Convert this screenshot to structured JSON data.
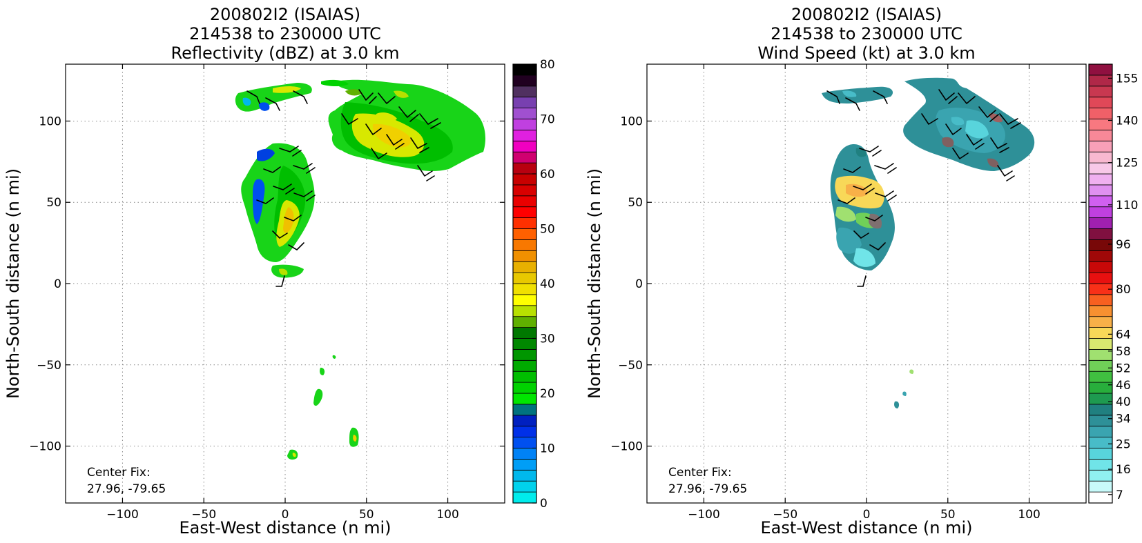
{
  "chart_data": [
    {
      "type": "heatmap",
      "title_lines": [
        "200802I2 (ISAIAS)",
        "214538 to 230000 UTC",
        "Reflectivity (dBZ) at 3.0 km"
      ],
      "xlabel": "East-West distance (n mi)",
      "ylabel": "North-South distance (n mi)",
      "xlim": [
        -135,
        135
      ],
      "ylim": [
        -135,
        135
      ],
      "xticks": [
        -100,
        -50,
        0,
        50,
        100
      ],
      "yticks": [
        -100,
        -50,
        0,
        50,
        100
      ],
      "grid": true,
      "annotation": [
        "Center Fix:",
        "27.96, -79.65"
      ],
      "colorbar": {
        "min": 0,
        "max": 80,
        "tick_labels": [
          "0",
          "10",
          "20",
          "30",
          "40",
          "50",
          "60",
          "70",
          "80"
        ],
        "tick_values": [
          0,
          10,
          20,
          30,
          40,
          50,
          60,
          70,
          80
        ],
        "colors": [
          "#00ecec",
          "#00d2ec",
          "#00b8ec",
          "#009ef6",
          "#0082f6",
          "#0050f0",
          "#0030e8",
          "#0020c0",
          "#00727f",
          "#00e600",
          "#00d200",
          "#00be00",
          "#00aa00",
          "#009600",
          "#008800",
          "#007800",
          "#60b000",
          "#b8e000",
          "#ffff00",
          "#f0e000",
          "#e8c800",
          "#e8b000",
          "#f09000",
          "#f87800",
          "#ff6000",
          "#ff3000",
          "#ff0000",
          "#ea0000",
          "#d80000",
          "#c80000",
          "#b80010",
          "#d00070",
          "#f000c0",
          "#e020e0",
          "#c040e0",
          "#a050d0",
          "#7840b0",
          "#503060",
          "#200020",
          "#000000"
        ]
      }
    },
    {
      "type": "heatmap",
      "title_lines": [
        "200802I2 (ISAIAS)",
        "214538 to 230000 UTC",
        "Wind Speed (kt) at 3.0 km"
      ],
      "xlabel": "East-West distance (n mi)",
      "ylabel": "North-South distance (n mi)",
      "xlim": [
        -135,
        135
      ],
      "ylim": [
        -135,
        135
      ],
      "xticks": [
        -100,
        -50,
        0,
        50,
        100
      ],
      "yticks": [
        -100,
        -50,
        0,
        50,
        100
      ],
      "grid": true,
      "annotation": [
        "Center Fix:",
        "27.96, -79.65"
      ],
      "colorbar": {
        "min": 4,
        "max": 160,
        "tick_labels": [
          "7",
          "16",
          "25",
          "34",
          "40",
          "46",
          "52",
          "58",
          "64",
          "80",
          "96",
          "110",
          "125",
          "140",
          "155"
        ],
        "tick_values": [
          7,
          16,
          25,
          34,
          40,
          46,
          52,
          58,
          64,
          80,
          96,
          110,
          125,
          140,
          155
        ],
        "colors": [
          "#ffffff",
          "#c8fafa",
          "#90f0f0",
          "#70e4e8",
          "#58d4dc",
          "#48bcc8",
          "#3aa4b0",
          "#2e9098",
          "#208080",
          "#1e9a50",
          "#28ae3c",
          "#40c040",
          "#70d058",
          "#a0e070",
          "#d8e870",
          "#f8d858",
          "#f8b048",
          "#f89030",
          "#f86020",
          "#f83018",
          "#e81010",
          "#c80808",
          "#a00808",
          "#780808",
          "#801040",
          "#a020b0",
          "#c040e0",
          "#d060f0",
          "#e090f0",
          "#f0b0f0",
          "#f8c8e8",
          "#f8b8d0",
          "#f8a0b8",
          "#f88898",
          "#f87880",
          "#f06068",
          "#e04858",
          "#c83850",
          "#b02848",
          "#901040"
        ]
      }
    }
  ]
}
